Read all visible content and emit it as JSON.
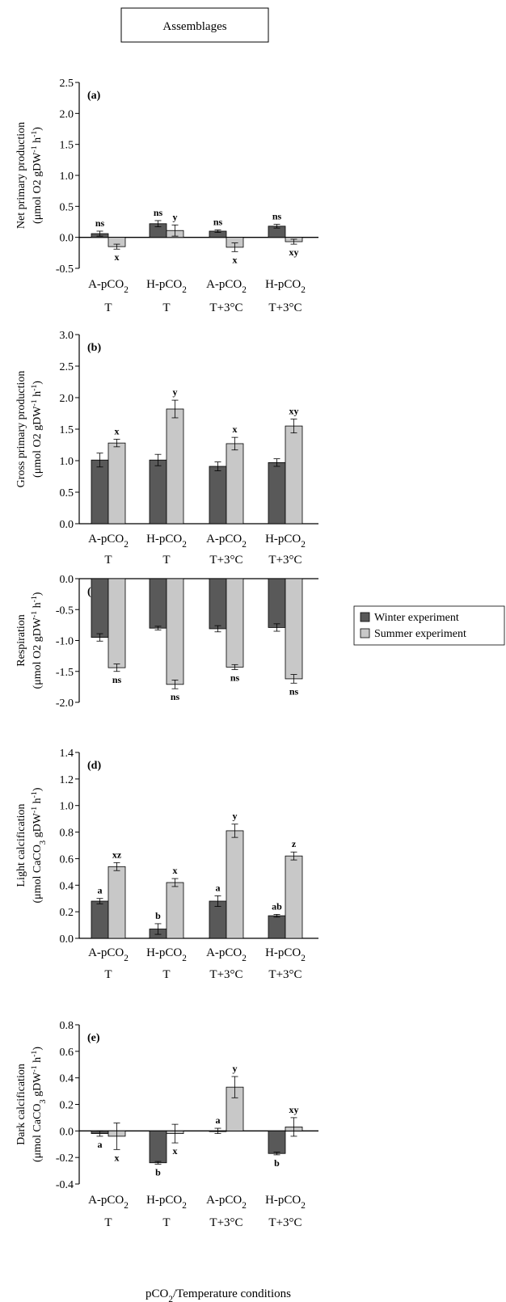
{
  "header": {
    "title": "Assemblages"
  },
  "legend": {
    "placement": "right",
    "items": [
      {
        "label": "Winter experiment",
        "color": "#595959"
      },
      {
        "label": "Summer experiment",
        "color": "#c8c8c8"
      }
    ]
  },
  "xlabel": "pCO2/Temperature conditions",
  "chart_data": [
    {
      "type": "bar",
      "panel": "(a)",
      "categories": [
        "A-pCO2 T",
        "H-pCO2 T",
        "A-pCO2 T+3°C",
        "H-pCO2 T+3°C"
      ],
      "ylabel": [
        "Net primary production",
        "(μmol O2 gDW⁻¹ h⁻¹)"
      ],
      "ylim": [
        -0.5,
        2.5
      ],
      "ticks": [
        2.5,
        2.0,
        1.5,
        1.0,
        0.5,
        0.0,
        -0.5
      ],
      "series": [
        {
          "name": "Winter experiment",
          "values": [
            0.06,
            0.22,
            0.1,
            0.18
          ],
          "errors": [
            0.04,
            0.05,
            0.02,
            0.03
          ],
          "labels": [
            "ns",
            "ns",
            "ns",
            "ns"
          ]
        },
        {
          "name": "Summer experiment",
          "values": [
            -0.15,
            0.11,
            -0.16,
            -0.07
          ],
          "errors": [
            0.04,
            0.09,
            0.07,
            0.04
          ],
          "labels": [
            "x",
            "y",
            "x",
            "xy"
          ]
        }
      ]
    },
    {
      "type": "bar",
      "panel": "(b)",
      "categories": [
        "A-pCO2 T",
        "H-pCO2 T",
        "A-pCO2 T+3°C",
        "H-pCO2 T+3°C"
      ],
      "ylabel": [
        "Gross primary production",
        "(μmol O2 gDW⁻¹ h⁻¹)"
      ],
      "ylim": [
        0.0,
        3.0
      ],
      "ticks": [
        3.0,
        2.5,
        2.0,
        1.5,
        1.0,
        0.5,
        0.0
      ],
      "series": [
        {
          "name": "Winter experiment",
          "values": [
            1.01,
            1.01,
            0.91,
            0.97
          ],
          "errors": [
            0.11,
            0.09,
            0.07,
            0.06
          ],
          "labels": [
            "",
            "",
            "",
            ""
          ]
        },
        {
          "name": "Summer experiment",
          "values": [
            1.28,
            1.82,
            1.27,
            1.55
          ],
          "errors": [
            0.06,
            0.14,
            0.1,
            0.11
          ],
          "labels": [
            "x",
            "y",
            "x",
            "xy"
          ]
        }
      ]
    },
    {
      "type": "bar",
      "panel": "(c)",
      "categories": [
        "A-pCO2 T",
        "H-pCO2 T",
        "A-pCO2 T+3°C",
        "H-pCO2 T+3°C"
      ],
      "ylabel": [
        "Respiration",
        "(μmol O2 gDW⁻¹ h⁻¹)"
      ],
      "ylim": [
        -2.0,
        0.0
      ],
      "ticks": [
        0.0,
        -0.5,
        -1.0,
        -1.5,
        -2.0
      ],
      "series": [
        {
          "name": "Winter experiment",
          "values": [
            -0.95,
            -0.8,
            -0.81,
            -0.79
          ],
          "errors": [
            0.06,
            0.03,
            0.05,
            0.06
          ],
          "labels": [
            "",
            "",
            "",
            ""
          ]
        },
        {
          "name": "Summer experiment",
          "values": [
            -1.44,
            -1.71,
            -1.43,
            -1.62
          ],
          "errors": [
            0.06,
            0.07,
            0.04,
            0.07
          ],
          "labels": [
            "ns",
            "ns",
            "ns",
            "ns"
          ]
        }
      ]
    },
    {
      "type": "bar",
      "panel": "(d)",
      "categories": [
        "A-pCO2 T",
        "H-pCO2 T",
        "A-pCO2 T+3°C",
        "H-pCO2 T+3°C"
      ],
      "ylabel": [
        "Light calcification",
        "(μmol CaCO3 gDW⁻¹ h⁻¹)"
      ],
      "ylim": [
        0.0,
        1.4
      ],
      "ticks": [
        1.4,
        1.2,
        1.0,
        0.8,
        0.6,
        0.4,
        0.2,
        0.0
      ],
      "series": [
        {
          "name": "Winter experiment",
          "values": [
            0.28,
            0.07,
            0.28,
            0.17
          ],
          "errors": [
            0.02,
            0.04,
            0.04,
            0.01
          ],
          "labels": [
            "a",
            "b",
            "a",
            "ab"
          ]
        },
        {
          "name": "Summer experiment",
          "values": [
            0.54,
            0.42,
            0.81,
            0.62
          ],
          "errors": [
            0.03,
            0.03,
            0.05,
            0.03
          ],
          "labels": [
            "xz",
            "x",
            "y",
            "z"
          ]
        }
      ]
    },
    {
      "type": "bar",
      "panel": "(e)",
      "categories": [
        "A-pCO2 T",
        "H-pCO2 T",
        "A-pCO2 T+3°C",
        "H-pCO2 T+3°C"
      ],
      "ylabel": [
        "Dark calcification",
        "(μmol CaCO3 gDW⁻¹ h⁻¹)"
      ],
      "ylim": [
        -0.4,
        0.8
      ],
      "ticks": [
        0.8,
        0.6,
        0.4,
        0.2,
        0.0,
        -0.2,
        -0.4
      ],
      "series": [
        {
          "name": "Winter experiment",
          "values": [
            -0.02,
            -0.24,
            0.0,
            -0.17
          ],
          "errors": [
            0.02,
            0.01,
            0.02,
            0.01
          ],
          "labels": [
            "a",
            "b",
            "a",
            "b"
          ]
        },
        {
          "name": "Summer experiment",
          "values": [
            -0.04,
            -0.02,
            0.33,
            0.03
          ],
          "errors": [
            0.1,
            0.07,
            0.08,
            0.07
          ],
          "labels": [
            "x",
            "x",
            "y",
            "xy"
          ]
        }
      ]
    }
  ]
}
